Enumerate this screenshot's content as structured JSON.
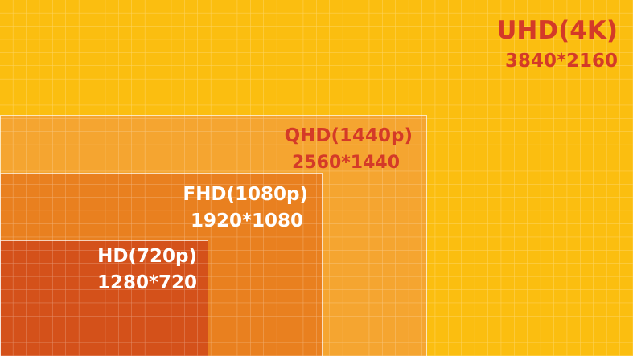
{
  "nodes": [
    {
      "label": "UHD(4K)",
      "resolution": "3840*2160"
    },
    {
      "label": "QHD(1440p)",
      "resolution": "2560*1440"
    },
    {
      "label": "FHD(1080p)",
      "resolution": "1920*1080"
    },
    {
      "label": "HD(720p)",
      "resolution": "1280*720"
    }
  ]
}
